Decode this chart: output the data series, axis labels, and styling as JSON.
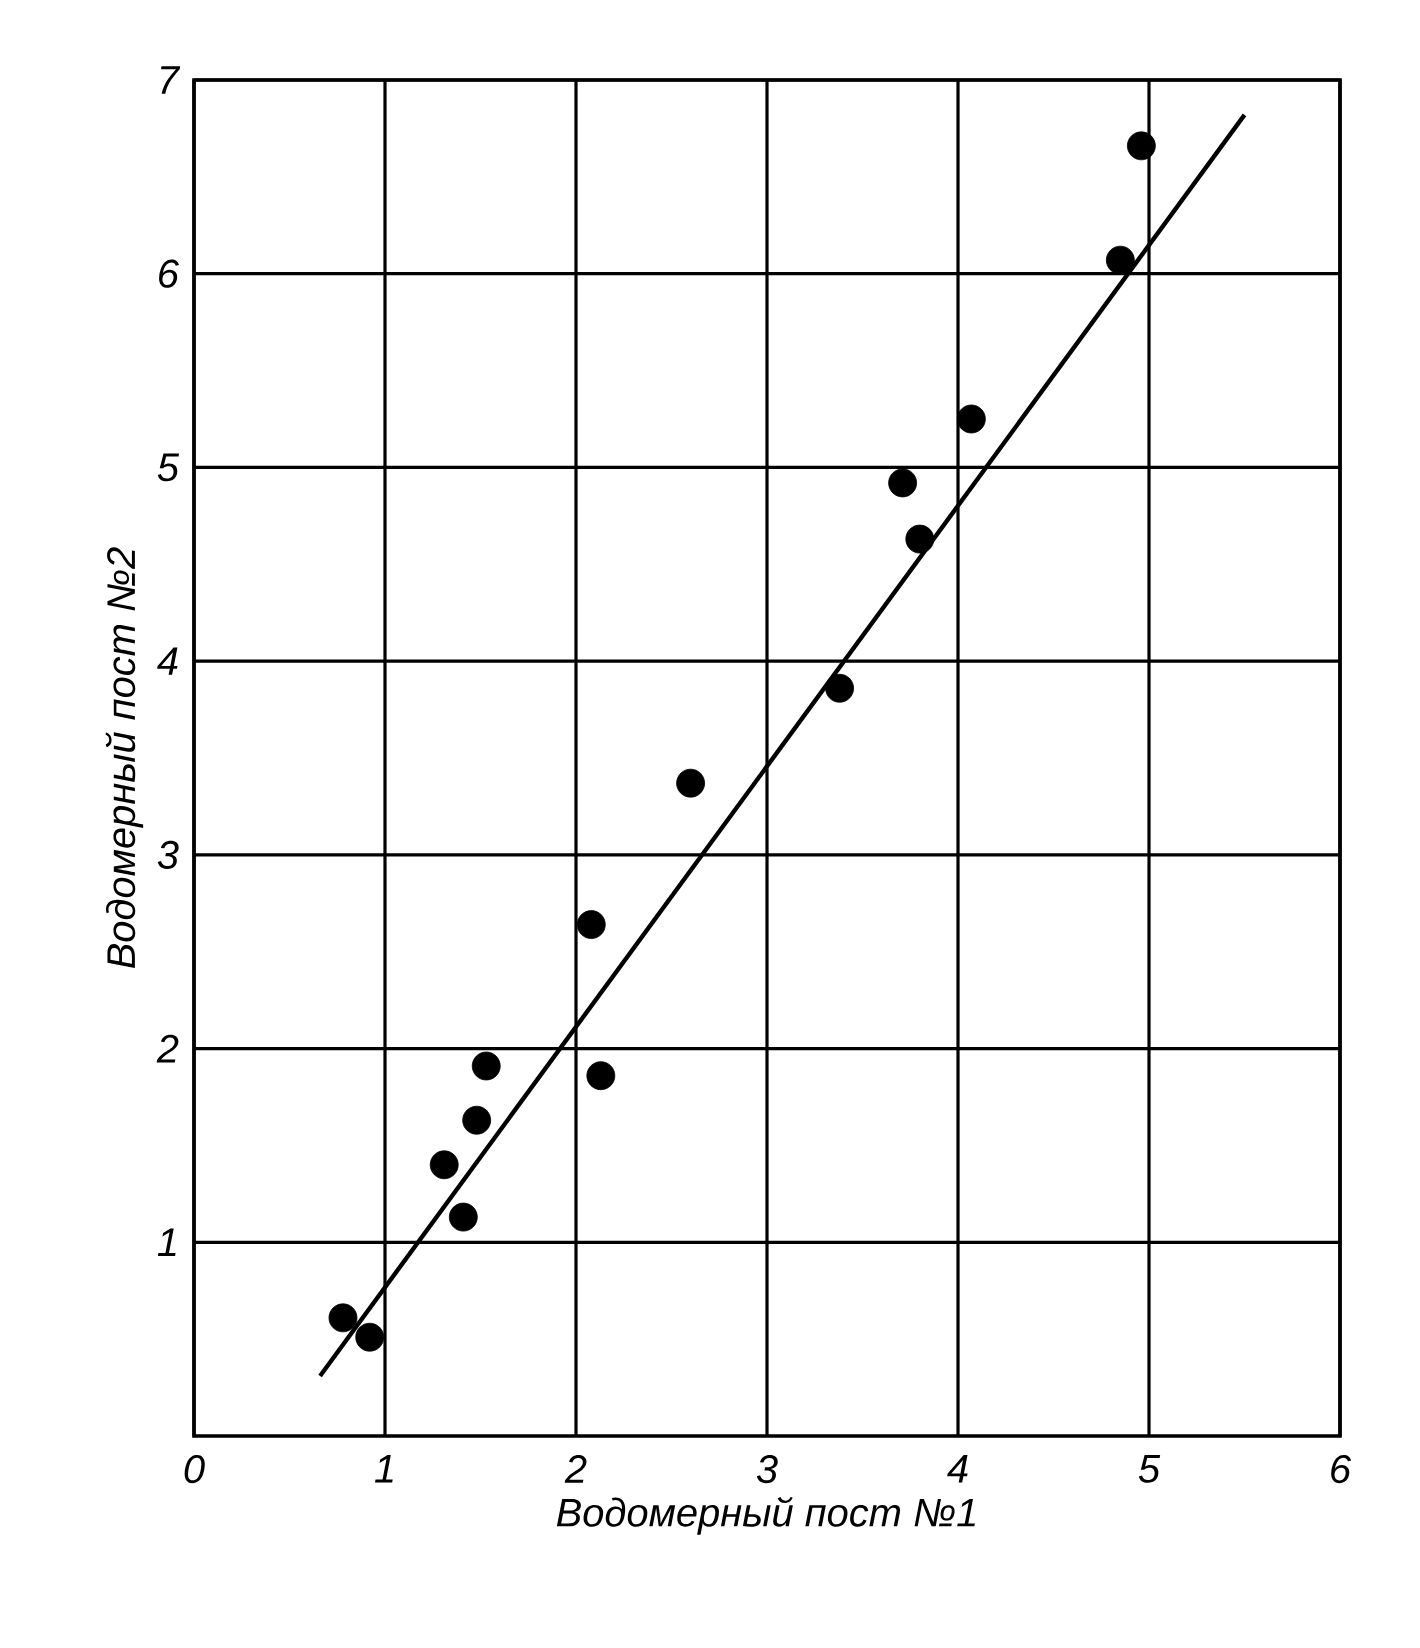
{
  "chart_data": {
    "type": "scatter",
    "xlabel": "Водомерный пост №1",
    "ylabel": "Водомерный пост №2",
    "xlim": [
      0,
      6
    ],
    "ylim": [
      0,
      7
    ],
    "xticks": [
      0,
      1,
      2,
      3,
      4,
      5,
      6
    ],
    "yticks": [
      1,
      2,
      3,
      4,
      5,
      6,
      7
    ],
    "grid": true,
    "series": [
      {
        "color": "#000000",
        "marker": "circle",
        "x": [
          0.78,
          0.92,
          1.31,
          1.41,
          1.48,
          1.53,
          2.08,
          2.13,
          2.6,
          3.38,
          3.71,
          3.8,
          4.07,
          4.85,
          4.96
        ],
        "values": [
          0.61,
          0.51,
          1.4,
          1.13,
          1.63,
          1.91,
          2.64,
          1.86,
          3.37,
          3.86,
          4.92,
          4.63,
          5.25,
          6.07,
          6.66
        ]
      },
      {
        "type": "line",
        "color": "#000000",
        "x": [
          0.66,
          5.5
        ],
        "values": [
          0.31,
          6.82
        ],
        "line_style": "solid",
        "marker": "none"
      }
    ]
  }
}
